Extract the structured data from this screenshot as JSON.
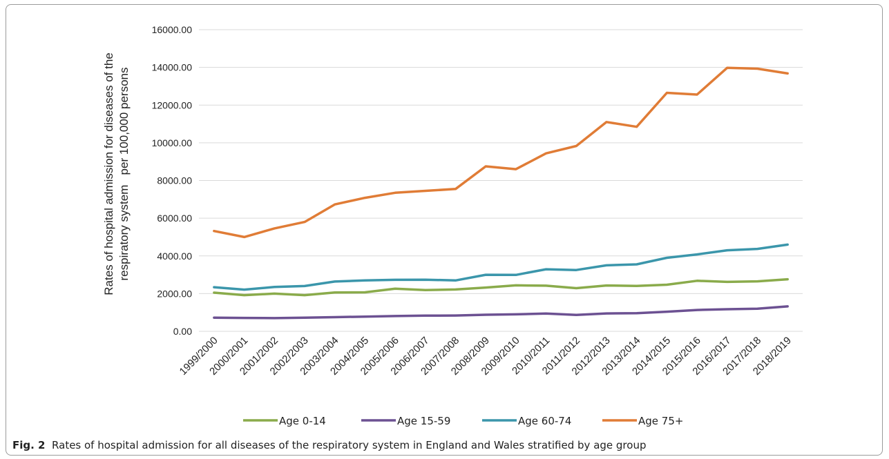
{
  "chart_data": {
    "type": "line",
    "title": "",
    "ylabel_line1": "Rates of hospital admission for diseases of the",
    "ylabel_line2": "respiratory system   per 100,000 persons",
    "xlabel": "",
    "ylim": [
      0,
      16000
    ],
    "yticks": [
      "0.00",
      "2000.00",
      "4000.00",
      "6000.00",
      "8000.00",
      "10000.00",
      "12000.00",
      "14000.00",
      "16000.00"
    ],
    "grid": true,
    "legend_position": "bottom",
    "categories": [
      "1999/2000",
      "2000/2001",
      "2001/2002",
      "2002/2003",
      "2003/2004",
      "2004/2005",
      "2005/2006",
      "2006/2007",
      "2007/2008",
      "2008/2009",
      "2009/2010",
      "2010/2011",
      "2011/2012",
      "2012/2013",
      "2013/2014",
      "2014/2015",
      "2015/2016",
      "2016/2017",
      "2017/2018",
      "2018/2019"
    ],
    "series": [
      {
        "name": "Age 0-14",
        "color": "#8aab4b",
        "values": [
          2050,
          1920,
          2000,
          1920,
          2060,
          2070,
          2260,
          2190,
          2220,
          2320,
          2440,
          2420,
          2290,
          2430,
          2410,
          2470,
          2680,
          2620,
          2650,
          2760
        ]
      },
      {
        "name": "Age 15-59",
        "color": "#6c5192",
        "values": [
          720,
          710,
          700,
          720,
          750,
          780,
          810,
          830,
          840,
          880,
          900,
          940,
          870,
          950,
          960,
          1040,
          1130,
          1170,
          1200,
          1320
        ]
      },
      {
        "name": "Age 60-74",
        "color": "#3b96ab",
        "values": [
          2340,
          2210,
          2350,
          2400,
          2640,
          2700,
          2730,
          2740,
          2700,
          3000,
          2990,
          3290,
          3250,
          3500,
          3550,
          3900,
          4080,
          4300,
          4370,
          4600
        ]
      },
      {
        "name": "Age 75+",
        "color": "#e07c36",
        "values": [
          5320,
          5000,
          5460,
          5800,
          6730,
          7080,
          7350,
          7450,
          7550,
          8750,
          8600,
          9440,
          9830,
          11100,
          10850,
          12650,
          12560,
          13980,
          13930,
          13680
        ]
      }
    ]
  },
  "caption": {
    "label": "Fig. 2",
    "text": "Rates of hospital admission for all diseases of the respiratory system in England and Wales stratified by age group"
  }
}
